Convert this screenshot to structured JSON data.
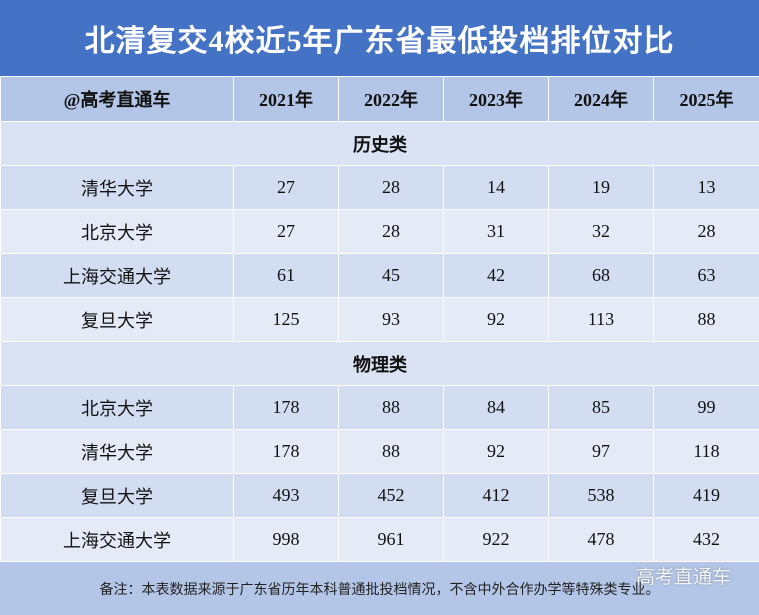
{
  "title": "北清复交4校近5年广东省最低投档排位对比",
  "table": {
    "header": [
      "@高考直通车",
      "2021年",
      "2022年",
      "2023年",
      "2024年",
      "2025年"
    ],
    "sections": [
      {
        "name": "历史类",
        "rows": [
          [
            "清华大学",
            27,
            28,
            14,
            19,
            13
          ],
          [
            "北京大学",
            27,
            28,
            31,
            32,
            28
          ],
          [
            "上海交通大学",
            61,
            45,
            42,
            68,
            63
          ],
          [
            "复旦大学",
            125,
            93,
            92,
            113,
            88
          ]
        ]
      },
      {
        "name": "物理类",
        "rows": [
          [
            "北京大学",
            178,
            88,
            84,
            85,
            99
          ],
          [
            "清华大学",
            178,
            88,
            92,
            97,
            118
          ],
          [
            "复旦大学",
            493,
            452,
            412,
            538,
            419
          ],
          [
            "上海交通大学",
            998,
            961,
            922,
            478,
            432
          ]
        ]
      }
    ]
  },
  "footer": "备注：本表数据来源于广东省历年本科普通批投档情况，不含中外合作办学等特殊类专业。",
  "watermark": "高考直通车"
}
